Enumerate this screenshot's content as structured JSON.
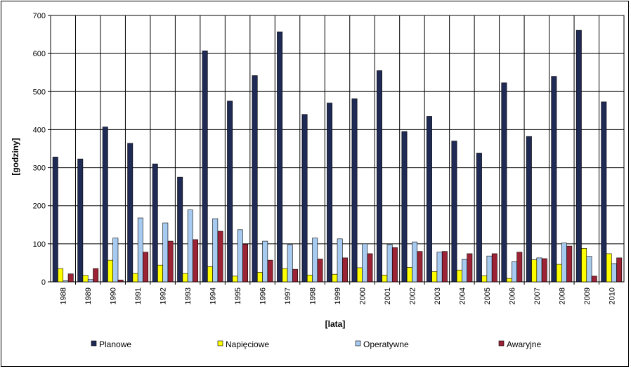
{
  "chart_data": {
    "type": "bar",
    "title": "",
    "xlabel": "[lata]",
    "ylabel": "[godziny]",
    "ylim": [
      0,
      700
    ],
    "yticks": [
      0,
      100,
      200,
      300,
      400,
      500,
      600,
      700
    ],
    "grid": "horizontal",
    "legend_position": "bottom",
    "categories": [
      "1988",
      "1989",
      "1990",
      "1991",
      "1992",
      "1993",
      "1994",
      "1995",
      "1996",
      "1997",
      "1998",
      "1999",
      "2000",
      "2001",
      "2002",
      "2003",
      "2004",
      "2005",
      "2006",
      "2007",
      "2008",
      "2009",
      "2010"
    ],
    "series": [
      {
        "name": "Planowe",
        "color": "#1f2a55",
        "values": [
          328,
          323,
          407,
          364,
          310,
          275,
          607,
          475,
          542,
          657,
          440,
          470,
          481,
          555,
          395,
          435,
          370,
          338,
          523,
          382,
          540,
          661,
          473
        ]
      },
      {
        "name": "Napięciowe",
        "color": "#ffff00",
        "values": [
          35,
          17,
          57,
          22,
          44,
          22,
          40,
          15,
          25,
          35,
          18,
          20,
          37,
          18,
          38,
          27,
          31,
          16,
          9,
          58,
          46,
          88,
          74
        ]
      },
      {
        "name": "Operatywne",
        "color": "#a6caf0",
        "values": [
          3,
          6,
          115,
          168,
          155,
          189,
          166,
          137,
          107,
          98,
          115,
          113,
          100,
          98,
          105,
          78,
          59,
          68,
          53,
          63,
          102,
          67,
          48
        ]
      },
      {
        "name": "Awaryjne",
        "color": "#9b2335",
        "values": [
          21,
          35,
          5,
          78,
          107,
          111,
          133,
          99,
          57,
          33,
          60,
          63,
          74,
          90,
          80,
          80,
          74,
          74,
          78,
          61,
          94,
          15,
          63
        ]
      }
    ]
  }
}
